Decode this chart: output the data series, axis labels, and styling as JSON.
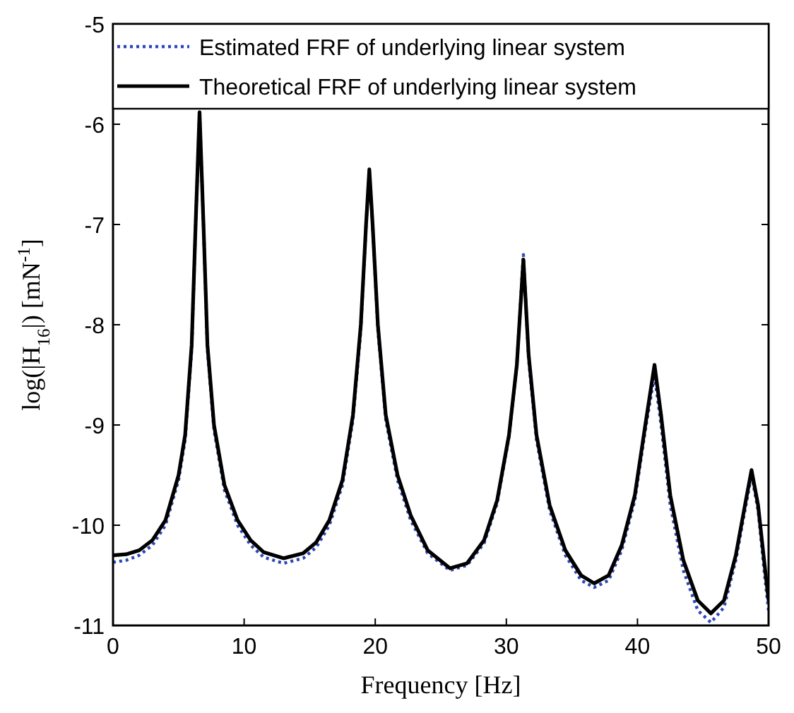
{
  "chart_data": {
    "type": "line",
    "xlabel": "Frequency [Hz]",
    "ylabel": "log(|H$_{16}$|) [mN$^{-1}$]",
    "xlim": [
      0,
      50
    ],
    "xticks": [
      0,
      10,
      20,
      30,
      40,
      50
    ],
    "ylim": [
      -11,
      -5
    ],
    "yticks": [
      -11,
      -10,
      -9,
      -8,
      -7,
      -6,
      -5
    ],
    "legend": "top",
    "grid": false,
    "x": [
      0,
      1,
      2,
      3,
      4,
      5,
      5.5,
      6,
      6.3,
      6.6,
      6.9,
      7.2,
      7.7,
      8.5,
      9.5,
      10.5,
      11.5,
      13,
      14.5,
      15.5,
      16.5,
      17.5,
      18.3,
      18.9,
      19.3,
      19.55,
      19.8,
      20.2,
      20.8,
      21.7,
      22.7,
      24,
      25.7,
      27,
      28.3,
      29.3,
      30.2,
      30.8,
      31.3,
      31.7,
      32.3,
      33.3,
      34.5,
      35.7,
      36.7,
      37.8,
      38.8,
      39.8,
      40.6,
      41.3,
      41.8,
      42.5,
      43.5,
      44.6,
      45.6,
      46.6,
      47.5,
      48.2,
      48.7,
      49.2,
      49.7,
      50
    ],
    "series": [
      {
        "name": "Estimated FRF of underlying linear system",
        "color": "#2e47b8",
        "line_style": "dotted",
        "values": [
          -10.37,
          -10.35,
          -10.3,
          -10.2,
          -10.0,
          -9.55,
          -9.15,
          -8.25,
          -7.0,
          -5.9,
          -7.0,
          -8.25,
          -9.05,
          -9.65,
          -10.0,
          -10.2,
          -10.32,
          -10.38,
          -10.33,
          -10.22,
          -10.0,
          -9.6,
          -8.95,
          -8.05,
          -7.0,
          -6.5,
          -7.0,
          -8.05,
          -8.95,
          -9.55,
          -9.95,
          -10.28,
          -10.45,
          -10.4,
          -10.18,
          -9.78,
          -9.12,
          -8.4,
          -7.3,
          -8.35,
          -9.15,
          -9.85,
          -10.3,
          -10.55,
          -10.62,
          -10.55,
          -10.25,
          -9.75,
          -9.05,
          -8.5,
          -9.0,
          -9.8,
          -10.45,
          -10.85,
          -10.97,
          -10.82,
          -10.35,
          -9.85,
          -9.5,
          -9.85,
          -10.5,
          -10.85
        ]
      },
      {
        "name": "Theoretical FRF of underlying linear system",
        "color": "#000000",
        "line_style": "solid",
        "values": [
          -10.3,
          -10.29,
          -10.25,
          -10.15,
          -9.95,
          -9.5,
          -9.1,
          -8.2,
          -7.0,
          -5.88,
          -7.0,
          -8.2,
          -9.0,
          -9.6,
          -9.95,
          -10.15,
          -10.27,
          -10.33,
          -10.28,
          -10.17,
          -9.95,
          -9.55,
          -8.9,
          -8.0,
          -7.0,
          -6.45,
          -7.0,
          -8.0,
          -8.9,
          -9.5,
          -9.9,
          -10.25,
          -10.43,
          -10.38,
          -10.15,
          -9.75,
          -9.1,
          -8.4,
          -7.35,
          -8.3,
          -9.1,
          -9.8,
          -10.25,
          -10.5,
          -10.58,
          -10.5,
          -10.2,
          -9.7,
          -9.0,
          -8.4,
          -8.9,
          -9.7,
          -10.35,
          -10.75,
          -10.88,
          -10.75,
          -10.3,
          -9.8,
          -9.45,
          -9.8,
          -10.4,
          -10.75
        ]
      }
    ]
  }
}
